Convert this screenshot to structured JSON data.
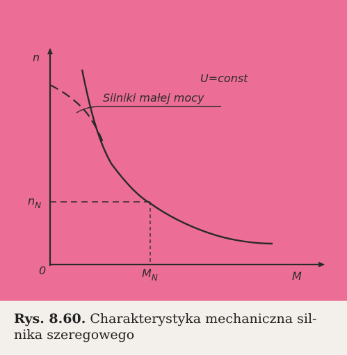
{
  "figure": {
    "background_color": "#ec6e97",
    "ink_color": "#2a2a2a",
    "axis_n": "n",
    "axis_M": "M",
    "origin": "0",
    "nN_main": "n",
    "nN_sub": "N",
    "MN_main": "M",
    "MN_sub": "N",
    "voltage_note": "U=const",
    "small_motor_label": "Silniki małej mocy"
  },
  "caption": {
    "rys": "Rys. 8.60.",
    "text_line1": "Charakterystyka mechaniczna sil-",
    "text_line2": "nika szeregowego"
  }
}
